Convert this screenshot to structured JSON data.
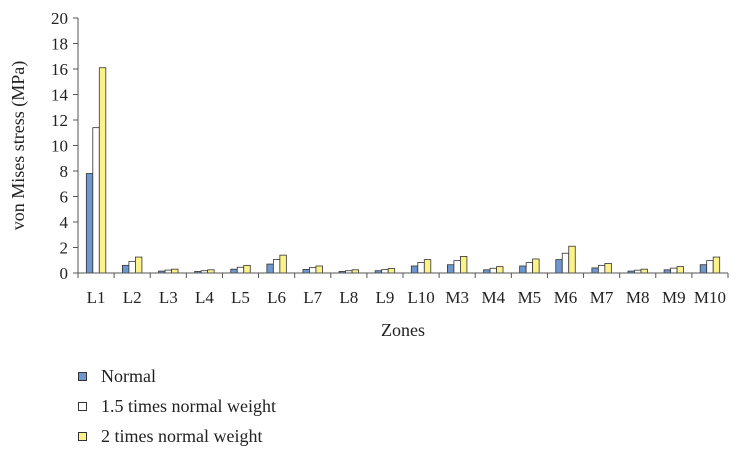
{
  "chart_data": {
    "type": "bar",
    "title": "",
    "xlabel": "Zones",
    "ylabel": "von Mises stress (MPa)",
    "ylim": [
      0,
      20
    ],
    "yticks": [
      "0",
      "2",
      "4",
      "6",
      "8",
      "10",
      "12",
      "14",
      "16",
      "18",
      "20"
    ],
    "categories": [
      "L1",
      "L2",
      "L3",
      "L4",
      "L5",
      "L6",
      "L7",
      "L8",
      "L9",
      "L10",
      "M3",
      "M4",
      "M5",
      "M6",
      "M7",
      "M8",
      "M9",
      "M10"
    ],
    "series": [
      {
        "name": "Normal",
        "color": "#6f97cf",
        "values": [
          7.8,
          0.6,
          0.15,
          0.12,
          0.3,
          0.7,
          0.28,
          0.12,
          0.18,
          0.55,
          0.65,
          0.25,
          0.55,
          1.05,
          0.4,
          0.15,
          0.25,
          0.65
        ]
      },
      {
        "name": "1.5 times normal weight",
        "color": "#ffffff",
        "values": [
          11.4,
          0.9,
          0.23,
          0.18,
          0.45,
          1.05,
          0.42,
          0.18,
          0.27,
          0.82,
          0.97,
          0.37,
          0.82,
          1.55,
          0.6,
          0.22,
          0.38,
          0.97
        ]
      },
      {
        "name": "2 times normal weight",
        "color": "#fbf28a",
        "values": [
          16.1,
          1.25,
          0.3,
          0.25,
          0.6,
          1.4,
          0.55,
          0.25,
          0.35,
          1.05,
          1.3,
          0.5,
          1.1,
          2.1,
          0.75,
          0.3,
          0.5,
          1.25
        ]
      }
    ],
    "grid": false,
    "legend_position": "bottom-left"
  }
}
